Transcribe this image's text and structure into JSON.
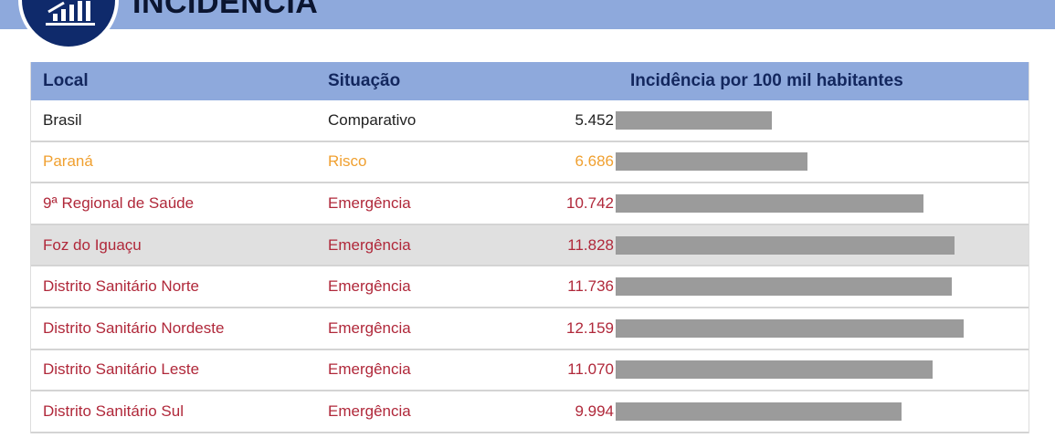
{
  "header": {
    "title": "INCIDÊNCIA",
    "icon": "bar-chart-growth-icon"
  },
  "colors": {
    "band": "#8ea9dc",
    "circle": "#0f2a6b",
    "risk": "#f0a030",
    "emergency": "#b0283a",
    "bar": "#9b9b9b"
  },
  "table": {
    "columns": [
      "Local",
      "Situação",
      "Incidência por 100 mil habitantes"
    ],
    "rows": [
      {
        "local": "Brasil",
        "situacao": "Comparativo",
        "valor": "5.452",
        "n": 5452,
        "tone": "black"
      },
      {
        "local": "Paraná",
        "situacao": "Risco",
        "valor": "6.686",
        "n": 6686,
        "tone": "orange"
      },
      {
        "local": "9ª Regional de Saúde",
        "situacao": "Emergência",
        "valor": "10.742",
        "n": 10742,
        "tone": "red"
      },
      {
        "local": "Foz do Iguaçu",
        "situacao": "Emergência",
        "valor": "11.828",
        "n": 11828,
        "tone": "red",
        "highlight": true
      },
      {
        "local": "Distrito Sanitário Norte",
        "situacao": "Emergência",
        "valor": "11.736",
        "n": 11736,
        "tone": "red"
      },
      {
        "local": "Distrito Sanitário Nordeste",
        "situacao": "Emergência",
        "valor": "12.159",
        "n": 12159,
        "tone": "red"
      },
      {
        "local": "Distrito Sanitário Leste",
        "situacao": "Emergência",
        "valor": "11.070",
        "n": 11070,
        "tone": "red"
      },
      {
        "local": "Distrito Sanitário Sul",
        "situacao": "Emergência",
        "valor": "9.994",
        "n": 9994,
        "tone": "red"
      }
    ]
  }
}
